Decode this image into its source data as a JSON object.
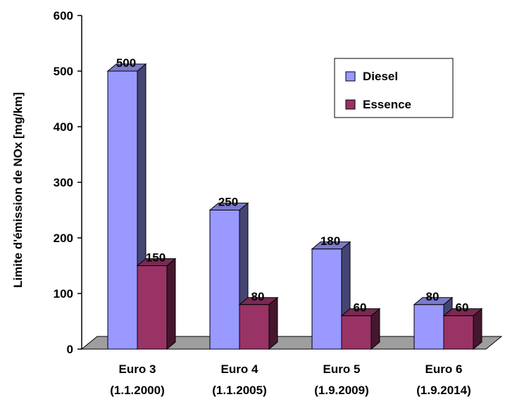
{
  "chart_data": {
    "type": "bar",
    "title": "",
    "ylabel": "Limite d'émission de NOx [mg/km]",
    "xlabel": "",
    "ylim": [
      0,
      600
    ],
    "yticks": [
      "0",
      "100",
      "200",
      "300",
      "400",
      "500",
      "600"
    ],
    "categories": [
      {
        "line1": "Euro 3",
        "line2": "(1.1.2000)"
      },
      {
        "line1": "Euro 4",
        "line2": "(1.1.2005)"
      },
      {
        "line1": "Euro 5",
        "line2": "(1.9.2009)"
      },
      {
        "line1": "Euro 6",
        "line2": "(1.9.2014)"
      }
    ],
    "series": [
      {
        "name": "Diesel",
        "values": [
          500,
          250,
          180,
          80
        ],
        "color": "#9999ff"
      },
      {
        "name": "Essence",
        "values": [
          150,
          80,
          60,
          60
        ],
        "color": "#993366"
      }
    ],
    "legend_position": "top-right",
    "grid": false,
    "style": "3d-clustered-column"
  }
}
